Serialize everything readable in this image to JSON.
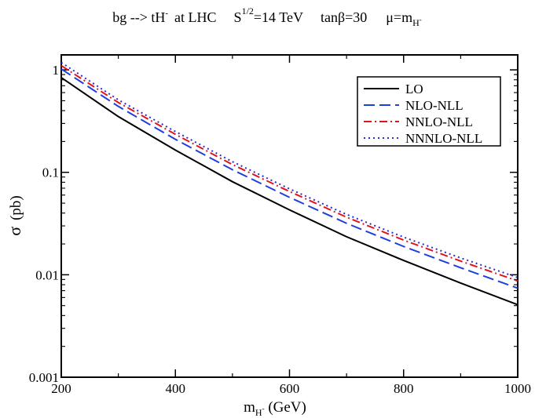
{
  "chart_data": {
    "type": "line",
    "title_parts": {
      "process": "bg --> tH",
      "process_sup": "-",
      "collider": "at  LHC",
      "energy_base": "S",
      "energy_sup": "1/2",
      "energy_value": "=14 TeV",
      "tanb": "tanβ=30",
      "scale_base": "μ=m",
      "scale_sub": "H",
      "scale_subsup": "-"
    },
    "xlabel_parts": {
      "base": "m",
      "sub": "H",
      "subsup": "-",
      "unit": " (GeV)"
    },
    "ylabel_parts": {
      "symbol": "σ",
      "unit": "(pb)"
    },
    "xlim": [
      200,
      1000
    ],
    "ylim": [
      0.001,
      1.4
    ],
    "yscale": "log",
    "x_ticks": [
      200,
      400,
      600,
      800,
      1000
    ],
    "x_tick_labels": [
      "200",
      "400",
      "600",
      "800",
      "1000"
    ],
    "y_ticks": [
      0.001,
      0.01,
      0.1,
      1
    ],
    "y_tick_labels": [
      "0.001",
      "0.01",
      "0.1",
      "1"
    ],
    "legend_position": "top-right",
    "x": [
      200,
      300,
      400,
      500,
      600,
      700,
      800,
      900,
      1000
    ],
    "series": [
      {
        "name": "LO",
        "color": "#000000",
        "dash": "solid",
        "values": [
          0.84,
          0.35,
          0.165,
          0.081,
          0.043,
          0.0235,
          0.0138,
          0.0083,
          0.0051
        ]
      },
      {
        "name": "NLO-NLL",
        "color": "#1f3fdc",
        "dash": "dashed",
        "values": [
          1.02,
          0.44,
          0.21,
          0.106,
          0.057,
          0.0318,
          0.0189,
          0.0117,
          0.0074
        ]
      },
      {
        "name": "NNLO-NLL",
        "color": "#e0151b",
        "dash": "dashdot",
        "values": [
          1.1,
          0.48,
          0.235,
          0.119,
          0.065,
          0.0365,
          0.0218,
          0.0136,
          0.0087
        ]
      },
      {
        "name": "NNNLO-NLL",
        "color": "#2a2ad8",
        "dash": "dotted",
        "values": [
          1.18,
          0.51,
          0.25,
          0.127,
          0.069,
          0.0388,
          0.0233,
          0.0146,
          0.0094
        ]
      }
    ]
  }
}
